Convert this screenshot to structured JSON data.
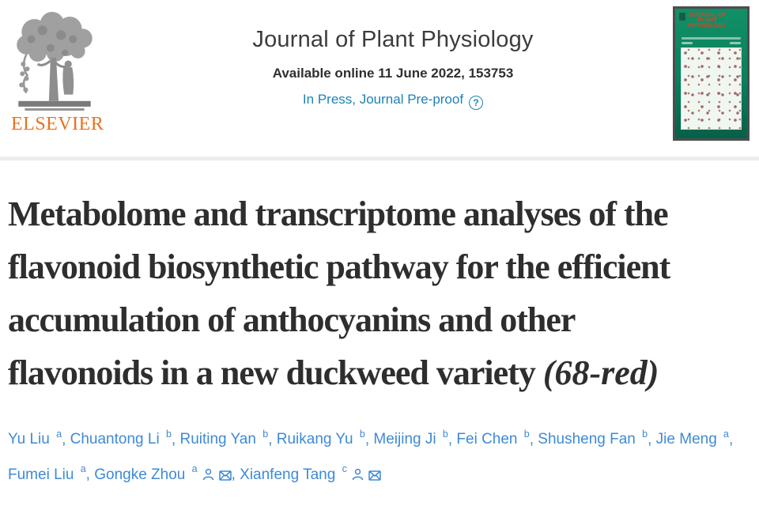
{
  "header": {
    "publisher": "ELSEVIER",
    "journal_title": "Journal of Plant Physiology",
    "availability": "Available online 11 June 2022, 153753",
    "status": "In Press, Journal Pre-proof",
    "status_icon_glyph": "?",
    "cover": {
      "title": "JOURNAL OF PLANT PHYSIOLOGY"
    }
  },
  "article": {
    "title_lines": [
      "Metabolome and transcriptome analyses of the",
      "flavonoid biosynthetic pathway for the efficient",
      "accumulation of anthocyanins and other",
      {
        "pre": "flavonoids in a new duckweed variety ",
        "italic": "(68-red)",
        "post": ""
      }
    ]
  },
  "authors": [
    {
      "name": "Yu Liu",
      "sup": "a",
      "icons": []
    },
    {
      "name": "Chuantong Li",
      "sup": "b",
      "icons": []
    },
    {
      "name": "Ruiting Yan",
      "sup": "b",
      "icons": []
    },
    {
      "name": "Ruikang Yu",
      "sup": "b",
      "icons": []
    },
    {
      "name": "Meijing Ji",
      "sup": "b",
      "icons": []
    },
    {
      "name": "Fei Chen",
      "sup": "b",
      "icons": []
    },
    {
      "name": "Shusheng Fan",
      "sup": "b",
      "icons": []
    },
    {
      "name": "Jie Meng",
      "sup": "a",
      "icons": []
    },
    {
      "name": "Fumei Liu",
      "sup": "a",
      "icons": []
    },
    {
      "name": "Gongke Zhou",
      "sup": "a",
      "icons": [
        "person-icon",
        "envelope-icon"
      ]
    },
    {
      "name": "Xianfeng Tang",
      "sup": "c",
      "icons": [
        "person-icon",
        "envelope-icon"
      ]
    }
  ],
  "colors": {
    "elsevier_orange": "#e9711c",
    "status_teal_blue": "#1d82b4",
    "author_blue": "#3e8ad6",
    "title_dark": "#2e2e2e",
    "cover_green": "#0b7f5c",
    "cover_title_red": "#d0482b",
    "divider_gray": "#ececec"
  }
}
